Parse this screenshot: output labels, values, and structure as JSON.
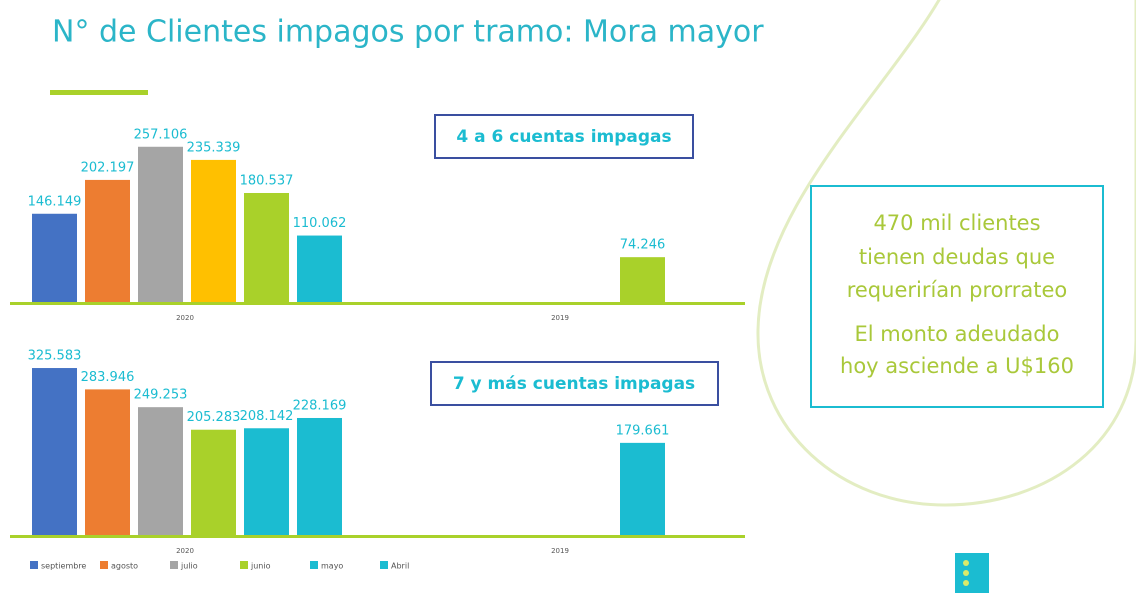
{
  "slide": {
    "title": "N° de Clientes impagos por tramo: Mora mayor",
    "charts": [
      {
        "label": "4 a 6 cuentas impagas",
        "groups": [
          "2020",
          "2019"
        ],
        "ylim": [
          0,
          265000
        ],
        "bars": [
          {
            "group": 0,
            "color": "#4472c4",
            "value": 146149,
            "value_label": "146.149"
          },
          {
            "group": 0,
            "color": "#ed7d31",
            "value": 202197,
            "value_label": "202.197"
          },
          {
            "group": 0,
            "color": "#a5a5a5",
            "value": 257106,
            "value_label": "257.106"
          },
          {
            "group": 0,
            "color": "#ffc000",
            "value": 235339,
            "value_label": "235.339"
          },
          {
            "group": 0,
            "color": "#a9d12a",
            "value": 180537,
            "value_label": "180.537"
          },
          {
            "group": 0,
            "color": "#1bbcd1",
            "value": 110062,
            "value_label": "110.062"
          },
          {
            "group": 1,
            "color": "#a9d12a",
            "value": 74246,
            "value_label": "74.246"
          }
        ]
      },
      {
        "label": "7 y más cuentas impagas",
        "groups": [
          "2020",
          "2019"
        ],
        "ylim": [
          0,
          312000
        ],
        "bars": [
          {
            "group": 0,
            "color": "#4472c4",
            "value": 325583,
            "value_label": "325.583"
          },
          {
            "group": 0,
            "color": "#ed7d31",
            "value": 283946,
            "value_label": "283.946"
          },
          {
            "group": 0,
            "color": "#a5a5a5",
            "value": 249253,
            "value_label": "249.253"
          },
          {
            "group": 0,
            "color": "#a9d12a",
            "value": 205283,
            "value_label": "205.283"
          },
          {
            "group": 0,
            "color": "#1bbcd1",
            "value": 208142,
            "value_label": "208.142"
          },
          {
            "group": 0,
            "color": "#1bbcd1",
            "value": 228169,
            "value_label": "228.169"
          },
          {
            "group": 1,
            "color": "#1bbcd1",
            "value": 179661,
            "value_label": "179.661"
          }
        ]
      }
    ],
    "legend": [
      {
        "name": "septiembre",
        "color": "#4472c4"
      },
      {
        "name": "agosto",
        "color": "#ed7d31"
      },
      {
        "name": "julio",
        "color": "#a5a5a5"
      },
      {
        "name": "junio",
        "color": "#a9d12a"
      },
      {
        "name": "mayo",
        "color": "#1bbcd1"
      },
      {
        "name": "Abril",
        "color": "#1bbcd1"
      }
    ],
    "callout": [
      "470 mil clientes",
      "tienen deudas que",
      "requerirían prorrateo",
      "El monto adeudado",
      "hoy asciende a U$160"
    ]
  }
}
